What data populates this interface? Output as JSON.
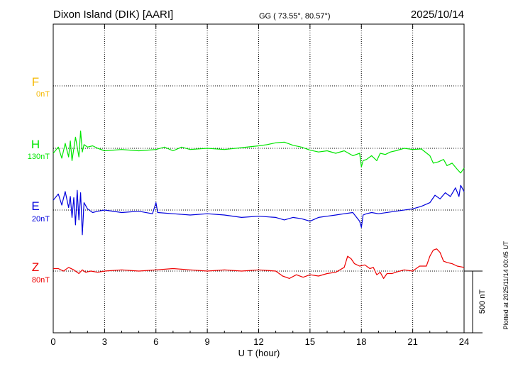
{
  "header": {
    "station": "Dixon Island (DIK)  [AARI]",
    "coords": "GG ( 73.55°,  80.57°)",
    "date": "2025/10/14"
  },
  "footer": {
    "plotted": "Plotted at 2025/11/14 00:45 UT"
  },
  "chart_data": {
    "type": "line",
    "xlabel": "U T (hour)",
    "xlim": [
      0,
      24
    ],
    "x_ticks": [
      "0",
      "3",
      "6",
      "9",
      "12",
      "15",
      "18",
      "21",
      "24"
    ],
    "scale_label": "500 nT",
    "scale_nT": 500,
    "series": [
      {
        "name": "F",
        "baseline": "0nT",
        "color": "#f5b800",
        "x": [],
        "y": []
      },
      {
        "name": "H",
        "baseline": "130nT",
        "color": "#00e600",
        "x": [
          0,
          0.3,
          0.5,
          0.7,
          0.9,
          1.0,
          1.1,
          1.3,
          1.5,
          1.6,
          1.7,
          1.8,
          2.0,
          2.3,
          2.6,
          3.0,
          4.0,
          5.0,
          6.0,
          6.5,
          7.0,
          7.5,
          8.0,
          9.0,
          10.0,
          11.0,
          12.0,
          12.5,
          13.0,
          13.5,
          14.0,
          14.5,
          15.0,
          15.5,
          16.0,
          16.5,
          17.0,
          17.5,
          17.9,
          18.0,
          18.1,
          18.3,
          18.6,
          18.9,
          19.1,
          19.4,
          19.7,
          20.0,
          20.5,
          21.0,
          21.5,
          22.0,
          22.2,
          22.5,
          22.8,
          23.0,
          23.3,
          23.6,
          23.8,
          24.0
        ],
        "y": [
          -40,
          10,
          -80,
          40,
          -70,
          60,
          -100,
          90,
          -70,
          140,
          -30,
          30,
          10,
          20,
          0,
          -20,
          -10,
          -20,
          -10,
          10,
          -20,
          10,
          -10,
          0,
          -10,
          5,
          20,
          30,
          45,
          50,
          25,
          10,
          -15,
          -30,
          -20,
          -40,
          -20,
          -60,
          -40,
          -150,
          -100,
          -90,
          -60,
          -100,
          -40,
          -50,
          -30,
          -20,
          0,
          -10,
          -5,
          -60,
          -120,
          -110,
          -90,
          -140,
          -120,
          -170,
          -200,
          -160
        ]
      },
      {
        "name": "E",
        "baseline": "20nT",
        "color": "#0000dd",
        "x": [
          0,
          0.3,
          0.5,
          0.7,
          0.9,
          1.0,
          1.1,
          1.2,
          1.3,
          1.4,
          1.5,
          1.6,
          1.7,
          1.8,
          2.0,
          2.3,
          2.6,
          3.0,
          4.0,
          5.0,
          5.8,
          6.0,
          6.1,
          7.0,
          8.0,
          9.0,
          10.0,
          11.0,
          12.0,
          13.0,
          13.5,
          14.0,
          14.5,
          15.0,
          15.5,
          16.0,
          16.5,
          17.0,
          17.5,
          17.9,
          18.0,
          18.1,
          18.3,
          18.6,
          19.0,
          20.0,
          21.0,
          21.5,
          22.0,
          22.3,
          22.6,
          22.9,
          23.2,
          23.5,
          23.7,
          23.8,
          24.0
        ],
        "y": [
          80,
          130,
          40,
          150,
          20,
          110,
          -60,
          100,
          -120,
          160,
          -80,
          140,
          -200,
          60,
          10,
          -20,
          -10,
          0,
          -20,
          -10,
          -30,
          60,
          -20,
          -30,
          -40,
          -30,
          -40,
          -60,
          -50,
          -60,
          -80,
          -60,
          -70,
          -90,
          -60,
          -50,
          -40,
          -30,
          -20,
          -90,
          -140,
          -40,
          -30,
          -20,
          -30,
          -10,
          10,
          30,
          60,
          120,
          90,
          140,
          110,
          180,
          110,
          200,
          150
        ]
      },
      {
        "name": "Z",
        "baseline": "80nT",
        "color": "#ee0000",
        "x": [
          0,
          0.3,
          0.6,
          0.9,
          1.2,
          1.5,
          1.7,
          1.9,
          2.2,
          2.6,
          3.0,
          4.0,
          5.0,
          6.0,
          7.0,
          8.0,
          9.0,
          10.0,
          11.0,
          12.0,
          13.0,
          13.4,
          13.8,
          14.2,
          14.6,
          15.0,
          15.5,
          16.0,
          16.5,
          17.0,
          17.2,
          17.4,
          17.6,
          17.9,
          18.2,
          18.5,
          18.7,
          18.9,
          19.1,
          19.3,
          19.5,
          19.8,
          20.0,
          20.5,
          21.0,
          21.4,
          21.8,
          22.0,
          22.2,
          22.4,
          22.6,
          22.8,
          23.0,
          23.3,
          23.6,
          24.0
        ],
        "y": [
          20,
          20,
          0,
          30,
          10,
          -20,
          10,
          -10,
          0,
          -10,
          0,
          10,
          0,
          10,
          20,
          10,
          0,
          10,
          0,
          10,
          0,
          -40,
          -60,
          -30,
          -50,
          -30,
          -40,
          -20,
          -10,
          30,
          120,
          100,
          60,
          40,
          50,
          20,
          30,
          -30,
          -10,
          -60,
          -20,
          -20,
          -10,
          10,
          0,
          40,
          40,
          120,
          170,
          180,
          150,
          80,
          70,
          60,
          40,
          30
        ]
      }
    ]
  }
}
